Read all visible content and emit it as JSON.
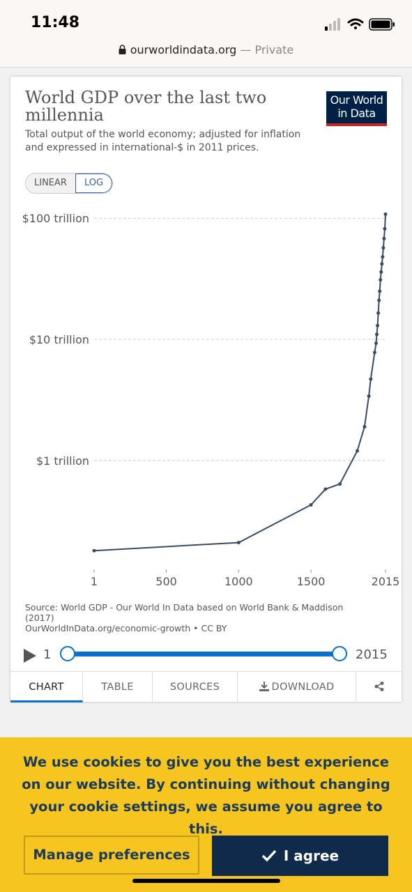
{
  "status": {
    "time": "11:48"
  },
  "browser": {
    "url": "ourworldindata.org",
    "private_label": "— Private"
  },
  "card": {
    "title": "World GDP over the last two millennia",
    "subtitle": "Total output of the world economy; adjusted for inflation and expressed in international-$ in 2011 prices.",
    "logo_line1": "Our World",
    "logo_line2": "in Data",
    "scale_linear": "LINEAR",
    "scale_log": "LOG",
    "source_line1": "Source: World GDP - Our World In Data based on World Bank & Maddison (2017)",
    "source_line2": "OurWorldInData.org/economic-growth • CC BY",
    "timeline_start": "1",
    "timeline_end": "2015",
    "tabs": [
      "CHART",
      "TABLE",
      "SOURCES",
      "DOWNLOAD"
    ],
    "active_tab": "CHART"
  },
  "chart_data": {
    "type": "line",
    "title": "World GDP over the last two millennia",
    "yscale": "log",
    "ylim": [
      0.15,
      110
    ],
    "xlim": [
      1,
      2015
    ],
    "yticks": [
      {
        "value": 100,
        "label": "$100 trillion"
      },
      {
        "value": 10,
        "label": "$10 trillion"
      },
      {
        "value": 1,
        "label": "$1 trillion"
      }
    ],
    "xticks": [
      {
        "value": 1,
        "label": "1"
      },
      {
        "value": 500,
        "label": "500"
      },
      {
        "value": 1000,
        "label": "1000"
      },
      {
        "value": 1500,
        "label": "1500"
      },
      {
        "value": 2015,
        "label": "2015"
      }
    ],
    "grid": true,
    "color": "#3b4a63",
    "series": [
      {
        "values": [
          [
            1,
            0.18
          ],
          [
            1000,
            0.21
          ],
          [
            1500,
            0.43
          ],
          [
            1600,
            0.58
          ],
          [
            1700,
            0.64
          ],
          [
            1820,
            1.2
          ],
          [
            1870,
            1.9
          ],
          [
            1900,
            3.4
          ],
          [
            1913,
            4.7
          ],
          [
            1940,
            7.8
          ],
          [
            1950,
            9.3
          ],
          [
            1955,
            11
          ],
          [
            1960,
            13
          ],
          [
            1965,
            16.5
          ],
          [
            1970,
            21
          ],
          [
            1975,
            25
          ],
          [
            1980,
            31
          ],
          [
            1985,
            36
          ],
          [
            1990,
            42
          ],
          [
            1995,
            48
          ],
          [
            2000,
            57
          ],
          [
            2005,
            68
          ],
          [
            2010,
            82
          ],
          [
            2015,
            108
          ]
        ]
      }
    ]
  },
  "cookie": {
    "message": "We use cookies to give you the best experience on our website. By continuing without changing your cookie settings, we assume you agree to this.",
    "manage_label": "Manage preferences",
    "agree_label": "I agree"
  }
}
